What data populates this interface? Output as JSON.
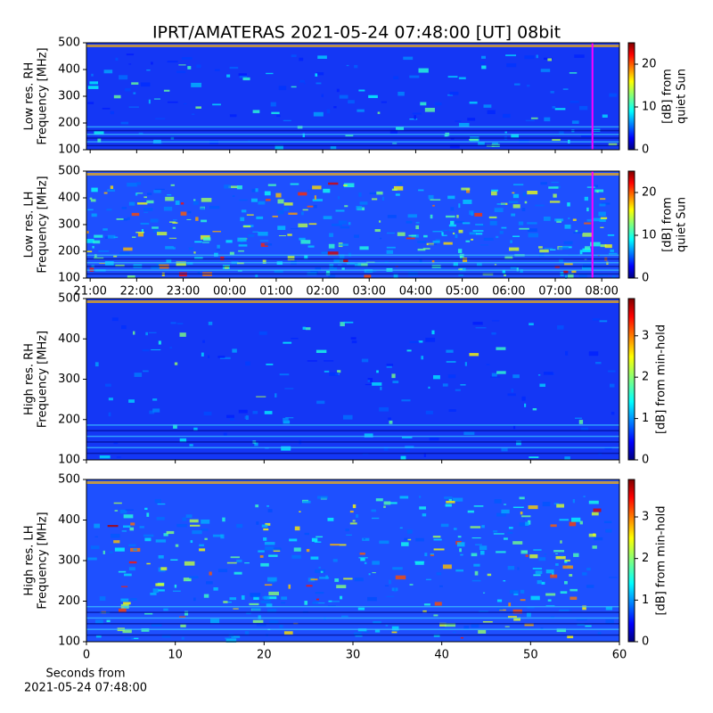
{
  "title": "IPRT/AMATERAS 2021-05-24 07:48:00 [UT]   08bit",
  "chart_data": [
    {
      "type": "heatmap",
      "ylabel": [
        "Low res. RH",
        "Frequency [MHz]"
      ],
      "colorbar_label": [
        "[dB] from",
        "quiet Sun"
      ],
      "xlim": [
        20.92,
        32.38
      ],
      "xticks": [
        {
          "value": 21,
          "label": "21:00"
        },
        {
          "value": 22,
          "label": "22:00"
        },
        {
          "value": 23,
          "label": "23:00"
        },
        {
          "value": 24,
          "label": "00:00"
        },
        {
          "value": 25,
          "label": "01:00"
        },
        {
          "value": 26,
          "label": "02:00"
        },
        {
          "value": 27,
          "label": "03:00"
        },
        {
          "value": 28,
          "label": "04:00"
        },
        {
          "value": 29,
          "label": "05:00"
        },
        {
          "value": 30,
          "label": "06:00"
        },
        {
          "value": 31,
          "label": "07:00"
        },
        {
          "value": 32,
          "label": "08:00"
        }
      ],
      "show_xtick_labels": false,
      "ylim": [
        100,
        500
      ],
      "yticks": [
        100,
        200,
        300,
        400,
        500
      ],
      "clim": [
        0,
        25
      ],
      "cticks": [
        0,
        10,
        20
      ],
      "colormap": "jet",
      "marker": {
        "x": 31.8,
        "color": "#ff00ff"
      },
      "noise": "rh"
    },
    {
      "type": "heatmap",
      "ylabel": [
        "Low res. LH",
        "Frequency [MHz]"
      ],
      "colorbar_label": [
        "[dB] from",
        "quiet Sun"
      ],
      "xlim": [
        20.92,
        32.38
      ],
      "xticks": [
        {
          "value": 21,
          "label": "21:00"
        },
        {
          "value": 22,
          "label": "22:00"
        },
        {
          "value": 23,
          "label": "23:00"
        },
        {
          "value": 24,
          "label": "00:00"
        },
        {
          "value": 25,
          "label": "01:00"
        },
        {
          "value": 26,
          "label": "02:00"
        },
        {
          "value": 27,
          "label": "03:00"
        },
        {
          "value": 28,
          "label": "04:00"
        },
        {
          "value": 29,
          "label": "05:00"
        },
        {
          "value": 30,
          "label": "06:00"
        },
        {
          "value": 31,
          "label": "07:00"
        },
        {
          "value": 32,
          "label": "08:00"
        }
      ],
      "show_xtick_labels": true,
      "ylim": [
        100,
        500
      ],
      "yticks": [
        100,
        200,
        300,
        400,
        500
      ],
      "clim": [
        0,
        25
      ],
      "cticks": [
        0,
        10,
        20
      ],
      "colormap": "jet",
      "marker": {
        "x": 31.8,
        "color": "#ff00ff"
      },
      "noise": "lh"
    },
    {
      "type": "heatmap",
      "ylabel": [
        "High res. RH",
        "Frequency [MHz]"
      ],
      "colorbar_label": [
        "[dB] from min-hold"
      ],
      "xlim": [
        0,
        60
      ],
      "xticks": [
        0,
        10,
        20,
        30,
        40,
        50,
        60
      ],
      "show_xtick_labels": false,
      "ylim": [
        100,
        500
      ],
      "yticks": [
        100,
        200,
        300,
        400,
        500
      ],
      "clim": [
        0,
        3.9
      ],
      "cticks": [
        0,
        1,
        2,
        3
      ],
      "colormap": "jet",
      "noise": "rh"
    },
    {
      "type": "heatmap",
      "ylabel": [
        "High res. LH",
        "Frequency [MHz]"
      ],
      "colorbar_label": [
        "[dB] from min-hold"
      ],
      "xlim": [
        0,
        60
      ],
      "xticks": [
        0,
        10,
        20,
        30,
        40,
        50,
        60
      ],
      "show_xtick_labels": true,
      "ylim": [
        100,
        500
      ],
      "yticks": [
        100,
        200,
        300,
        400,
        500
      ],
      "clim": [
        0,
        3.9
      ],
      "cticks": [
        0,
        1,
        2,
        3
      ],
      "colormap": "jet",
      "noise": "lh",
      "xlabel": [
        "Seconds from",
        "2021-05-24 07:48:00"
      ]
    }
  ]
}
